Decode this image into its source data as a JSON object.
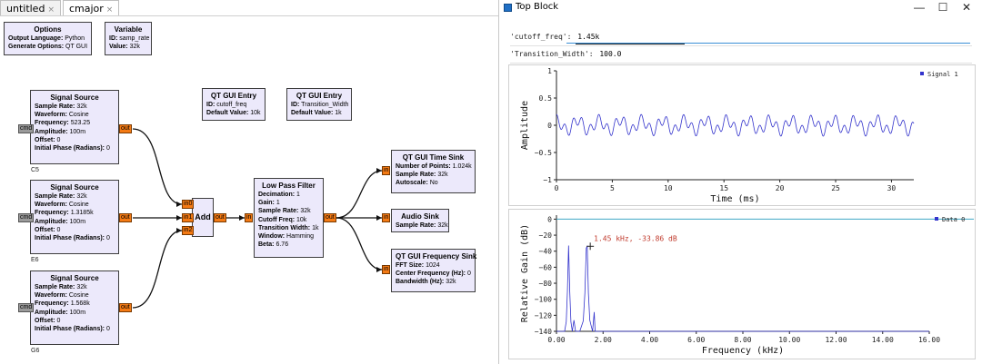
{
  "editor": {
    "tabs": [
      {
        "label": "untitled",
        "close": "×"
      },
      {
        "label": "cmajor",
        "close": "×"
      }
    ],
    "options": {
      "title": "Options",
      "rows": [
        [
          "Output Language:",
          "Python"
        ],
        [
          "Generate Options:",
          "QT GUI"
        ]
      ]
    },
    "variable": {
      "title": "Variable",
      "rows": [
        [
          "ID:",
          "samp_rate"
        ],
        [
          "Value:",
          "32k"
        ]
      ]
    },
    "entry1": {
      "title": "QT GUI Entry",
      "rows": [
        [
          "ID:",
          "cutoff_freq"
        ],
        [
          "Default Value:",
          "10k"
        ]
      ]
    },
    "entry2": {
      "title": "QT GUI Entry",
      "rows": [
        [
          "ID:",
          "Transition_Width"
        ],
        [
          "Default Value:",
          "1k"
        ]
      ]
    },
    "src1": {
      "title": "Signal Source",
      "label": "C5",
      "rows": [
        [
          "Sample Rate:",
          "32k"
        ],
        [
          "Waveform:",
          "Cosine"
        ],
        [
          "Frequency:",
          "523.25"
        ],
        [
          "Amplitude:",
          "100m"
        ],
        [
          "Offset:",
          "0"
        ],
        [
          "Initial Phase (Radians):",
          "0"
        ]
      ]
    },
    "src2": {
      "title": "Signal Source",
      "label": "E6",
      "rows": [
        [
          "Sample Rate:",
          "32k"
        ],
        [
          "Waveform:",
          "Cosine"
        ],
        [
          "Frequency:",
          "1.3185k"
        ],
        [
          "Amplitude:",
          "100m"
        ],
        [
          "Offset:",
          "0"
        ],
        [
          "Initial Phase (Radians):",
          "0"
        ]
      ]
    },
    "src3": {
      "title": "Signal Source",
      "label": "G6",
      "rows": [
        [
          "Sample Rate:",
          "32k"
        ],
        [
          "Waveform:",
          "Cosine"
        ],
        [
          "Frequency:",
          "1.568k"
        ],
        [
          "Amplitude:",
          "100m"
        ],
        [
          "Offset:",
          "0"
        ],
        [
          "Initial Phase (Radians):",
          "0"
        ]
      ]
    },
    "add": {
      "title": "Add",
      "inputs": [
        "in0",
        "in1",
        "in2"
      ]
    },
    "lpf": {
      "title": "Low Pass Filter",
      "rows": [
        [
          "Decimation:",
          "1"
        ],
        [
          "Gain:",
          "1"
        ],
        [
          "Sample Rate:",
          "32k"
        ],
        [
          "Cutoff Freq:",
          "10k"
        ],
        [
          "Transition Width:",
          "1k"
        ],
        [
          "Window:",
          "Hamming"
        ],
        [
          "Beta:",
          "6.76"
        ]
      ]
    },
    "timesink": {
      "title": "QT GUI Time Sink",
      "rows": [
        [
          "Number of Points:",
          "1.024k"
        ],
        [
          "Sample Rate:",
          "32k"
        ],
        [
          "Autoscale:",
          "No"
        ]
      ]
    },
    "audiosink": {
      "title": "Audio Sink",
      "rows": [
        [
          "Sample Rate:",
          "32k"
        ]
      ]
    },
    "freqsink": {
      "title": "QT GUI Frequency Sink",
      "rows": [
        [
          "FFT Size:",
          "1024"
        ],
        [
          "Center Frequency (Hz):",
          "0"
        ],
        [
          "Bandwidth (Hz):",
          "32k"
        ]
      ]
    },
    "port_labels": {
      "in": "in",
      "out": "out",
      "cmd": "cmd"
    }
  },
  "window": {
    "title": "Top Block",
    "buttons": {
      "minimize": "—",
      "maximize": "☐",
      "close": "✕"
    },
    "params": [
      {
        "label": "'cutoff_freq':",
        "value": "1.45k"
      },
      {
        "label": "'Transition_Width':",
        "value": "100.0"
      }
    ]
  },
  "chart_data": [
    {
      "type": "line",
      "ylabel": "Amplitude",
      "xlabel": "Time (ms)",
      "xlim": [
        0,
        32
      ],
      "ylim": [
        -1,
        1
      ],
      "xticks": [
        0,
        5,
        10,
        15,
        20,
        25,
        30
      ],
      "yticks": [
        -1,
        -0.5,
        0,
        0.5,
        1
      ],
      "ytick_labels": [
        "−1",
        "−0.5",
        "0",
        "0.5",
        "1"
      ],
      "series": [
        {
          "name": "Signal 1",
          "color": "#3333cc",
          "signal": {
            "components": [
              {
                "freq_khz": 0.52325,
                "amp": 0.1
              },
              {
                "freq_khz": 1.3185,
                "amp": 0.1
              }
            ],
            "offset": 0
          }
        }
      ],
      "legend": "right",
      "grid": false
    },
    {
      "type": "line",
      "ylabel": "Relative Gain (dB)",
      "xlabel": "Frequency (kHz)",
      "xlim": [
        0,
        16
      ],
      "ylim": [
        -140,
        5
      ],
      "xticks": [
        0,
        2,
        4,
        6,
        8,
        10,
        12,
        14,
        16
      ],
      "xtick_labels": [
        "0.00",
        "2.00",
        "4.00",
        "6.00",
        "8.00",
        "10.00",
        "12.00",
        "14.00",
        "16.00"
      ],
      "yticks": [
        0,
        -20,
        -40,
        -60,
        -80,
        -100,
        -120,
        -140
      ],
      "ytick_labels": [
        "0",
        "−20",
        "−40",
        "−60",
        "−80",
        "−100",
        "−120",
        "−140"
      ],
      "series": [
        {
          "name": "Data 0",
          "color": "#3333cc",
          "points": [
            [
              0.0,
              -140
            ],
            [
              0.35,
              -140
            ],
            [
              0.42,
              -128
            ],
            [
              0.47,
              -90
            ],
            [
              0.52,
              -33
            ],
            [
              0.57,
              -90
            ],
            [
              0.62,
              -128
            ],
            [
              0.68,
              -140
            ],
            [
              0.75,
              -126
            ],
            [
              0.82,
              -140
            ],
            [
              1.0,
              -140
            ],
            [
              1.15,
              -127
            ],
            [
              1.22,
              -92
            ],
            [
              1.28,
              -36
            ],
            [
              1.32,
              -34
            ],
            [
              1.37,
              -92
            ],
            [
              1.43,
              -126
            ],
            [
              1.48,
              -132
            ],
            [
              1.55,
              -140
            ],
            [
              1.62,
              -116
            ],
            [
              1.66,
              -140
            ],
            [
              2.0,
              -140
            ],
            [
              16.0,
              -140
            ]
          ]
        }
      ],
      "reference_line": {
        "y": 0,
        "color": "#3fa7c4"
      },
      "annotation": {
        "x": 1.45,
        "y": -33.86,
        "text": "1.45 kHz, -33.86 dB",
        "color": "#c0392b"
      },
      "legend": "right",
      "grid": false
    }
  ]
}
